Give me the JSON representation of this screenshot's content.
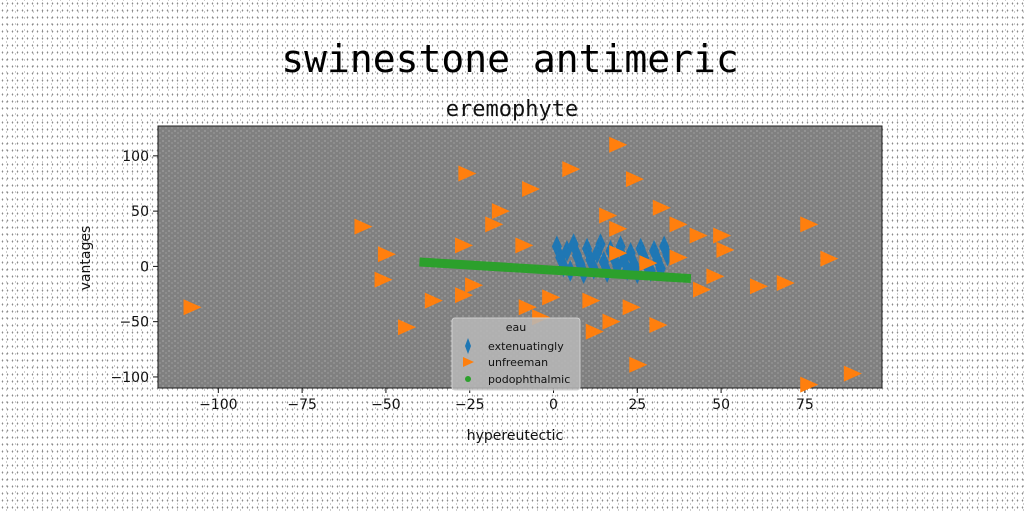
{
  "chart_data": {
    "type": "scatter",
    "title": "swinestone antimeric",
    "subtitle": "eremophyte",
    "xlabel": "hypereutectic",
    "ylabel": "vantages",
    "xlim": [
      -118,
      98
    ],
    "ylim": [
      -110,
      127
    ],
    "xticks": [
      -100,
      -75,
      -50,
      -25,
      0,
      25,
      50,
      75
    ],
    "yticks": [
      -100,
      -50,
      0,
      50,
      100
    ],
    "grid": false,
    "legend": {
      "title": "eau",
      "placement": "lower-center"
    },
    "series": [
      {
        "name": "extenuatingly",
        "marker": "thin-diamond",
        "color": "#1f77b4",
        "points": [
          [
            1,
            18
          ],
          [
            2,
            8
          ],
          [
            3,
            0
          ],
          [
            4,
            14
          ],
          [
            5,
            -4
          ],
          [
            6,
            20
          ],
          [
            7,
            10
          ],
          [
            8,
            2
          ],
          [
            9,
            -6
          ],
          [
            10,
            16
          ],
          [
            11,
            6
          ],
          [
            12,
            -2
          ],
          [
            13,
            12
          ],
          [
            14,
            20
          ],
          [
            15,
            4
          ],
          [
            16,
            -5
          ],
          [
            17,
            14
          ],
          [
            18,
            8
          ],
          [
            19,
            0
          ],
          [
            20,
            18
          ],
          [
            21,
            6
          ],
          [
            22,
            -3
          ],
          [
            23,
            12
          ],
          [
            24,
            2
          ],
          [
            25,
            -6
          ],
          [
            26,
            16
          ],
          [
            27,
            8
          ],
          [
            28,
            0
          ],
          [
            29,
            -4
          ],
          [
            30,
            14
          ],
          [
            31,
            6
          ],
          [
            32,
            -2
          ],
          [
            33,
            18
          ],
          [
            34,
            10
          ]
        ]
      },
      {
        "name": "unfreeman",
        "marker": "triangle-right",
        "color": "#ff7f0e",
        "points": [
          [
            -108,
            -37
          ],
          [
            -57,
            36
          ],
          [
            -50,
            11
          ],
          [
            -51,
            -12
          ],
          [
            -44,
            -55
          ],
          [
            -36,
            -31
          ],
          [
            -27,
            -26
          ],
          [
            -24,
            -17
          ],
          [
            -26,
            84
          ],
          [
            -27,
            19
          ],
          [
            -18,
            38
          ],
          [
            -16,
            50
          ],
          [
            -9,
            19
          ],
          [
            -8,
            -37
          ],
          [
            -4,
            -46
          ],
          [
            -1,
            -28
          ],
          [
            -7,
            70
          ],
          [
            5,
            88
          ],
          [
            11,
            -31
          ],
          [
            12,
            -59
          ],
          [
            16,
            46
          ],
          [
            17,
            -50
          ],
          [
            19,
            34
          ],
          [
            19,
            12
          ],
          [
            19,
            110
          ],
          [
            23,
            -37
          ],
          [
            24,
            79
          ],
          [
            25,
            -89
          ],
          [
            28,
            3
          ],
          [
            31,
            -53
          ],
          [
            32,
            53
          ],
          [
            37,
            8
          ],
          [
            37,
            38
          ],
          [
            43,
            28
          ],
          [
            44,
            -21
          ],
          [
            48,
            -9
          ],
          [
            50,
            28
          ],
          [
            51,
            15
          ],
          [
            61,
            -18
          ],
          [
            69,
            -15
          ],
          [
            76,
            38
          ],
          [
            76,
            -107
          ],
          [
            82,
            7
          ],
          [
            89,
            -97
          ]
        ]
      },
      {
        "name": "podophthalmic",
        "marker": "circle",
        "color": "#2ca02c",
        "line": {
          "from": [
            -40,
            4
          ],
          "to": [
            41,
            -11
          ]
        }
      }
    ]
  }
}
